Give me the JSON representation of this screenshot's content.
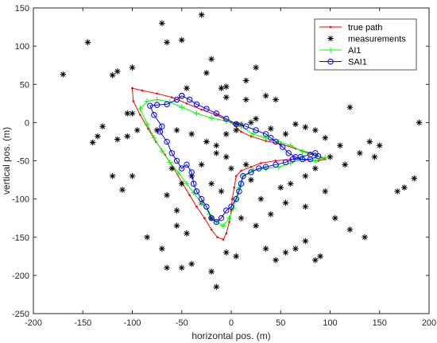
{
  "chart_data": {
    "type": "line",
    "xlabel": "horizontal pos. (m)",
    "ylabel": "vertical pos. (m)",
    "xlim": [
      -200,
      200
    ],
    "ylim": [
      -250,
      150
    ],
    "xticks": [
      -200,
      -150,
      -100,
      -50,
      0,
      50,
      100,
      150,
      200
    ],
    "yticks": [
      -250,
      -200,
      -150,
      -100,
      -50,
      0,
      50,
      100,
      150
    ],
    "grid": false,
    "legend_position": "top-right",
    "series": [
      {
        "name": "true path",
        "color": "#ff0000",
        "marker": "dot",
        "points": [
          [
            -100,
            45
          ],
          [
            -90,
            42
          ],
          [
            -75,
            38
          ],
          [
            -60,
            33
          ],
          [
            -45,
            25
          ],
          [
            -30,
            17
          ],
          [
            -15,
            10
          ],
          [
            0,
            0
          ],
          [
            10,
            -12
          ],
          [
            20,
            -18
          ],
          [
            35,
            -24
          ],
          [
            50,
            -28
          ],
          [
            65,
            -34
          ],
          [
            80,
            -40
          ],
          [
            95,
            -48
          ],
          [
            88,
            -50
          ],
          [
            75,
            -49
          ],
          [
            60,
            -48
          ],
          [
            45,
            -50
          ],
          [
            30,
            -53
          ],
          [
            20,
            -58
          ],
          [
            10,
            -63
          ],
          [
            5,
            -70
          ],
          [
            3,
            -85
          ],
          [
            1,
            -100
          ],
          [
            0,
            -115
          ],
          [
            -2,
            -130
          ],
          [
            -5,
            -145
          ],
          [
            -8,
            -153
          ],
          [
            -14,
            -150
          ],
          [
            -20,
            -140
          ],
          [
            -27,
            -125
          ],
          [
            -35,
            -110
          ],
          [
            -42,
            -95
          ],
          [
            -50,
            -78
          ],
          [
            -58,
            -60
          ],
          [
            -67,
            -42
          ],
          [
            -76,
            -25
          ],
          [
            -84,
            -8
          ],
          [
            -92,
            10
          ],
          [
            -99,
            28
          ],
          [
            -100,
            45
          ]
        ]
      },
      {
        "name": "measurements",
        "color": "#000000",
        "marker": "asterisk",
        "points": [
          [
            -30,
            141
          ],
          [
            -70,
            130
          ],
          [
            -145,
            105
          ],
          [
            -50,
            108
          ],
          [
            -65,
            105
          ],
          [
            -170,
            63
          ],
          [
            -115,
            67
          ],
          [
            -120,
            62
          ],
          [
            -100,
            72
          ],
          [
            -20,
            83
          ],
          [
            25,
            72
          ],
          [
            -25,
            65
          ],
          [
            -10,
            45
          ],
          [
            -5,
            47
          ],
          [
            -45,
            45
          ],
          [
            15,
            55
          ],
          [
            15,
            30
          ],
          [
            -5,
            33
          ],
          [
            35,
            35
          ],
          [
            45,
            30
          ],
          [
            -100,
            12
          ],
          [
            -105,
            12
          ],
          [
            -130,
            -5
          ],
          [
            -135,
            -18
          ],
          [
            -140,
            -26
          ],
          [
            -115,
            -22
          ],
          [
            -105,
            -18
          ],
          [
            -95,
            -10
          ],
          [
            -75,
            -10
          ],
          [
            -55,
            -10
          ],
          [
            -40,
            -15
          ],
          [
            -25,
            -25
          ],
          [
            -15,
            -30
          ],
          [
            -5,
            -15
          ],
          [
            5,
            -10
          ],
          [
            10,
            -3
          ],
          [
            20,
            0
          ],
          [
            25,
            5
          ],
          [
            40,
            -8
          ],
          [
            55,
            -15
          ],
          [
            65,
            -2
          ],
          [
            75,
            -6
          ],
          [
            85,
            -10
          ],
          [
            95,
            -20
          ],
          [
            110,
            -30
          ],
          [
            120,
            20
          ],
          [
            140,
            -25
          ],
          [
            150,
            -30
          ],
          [
            145,
            -45
          ],
          [
            130,
            -40
          ],
          [
            115,
            -55
          ],
          [
            100,
            -45
          ],
          [
            85,
            -60
          ],
          [
            75,
            -70
          ],
          [
            60,
            -80
          ],
          [
            50,
            -85
          ],
          [
            95,
            -90
          ],
          [
            105,
            -125
          ],
          [
            120,
            -140
          ],
          [
            135,
            -150
          ],
          [
            75,
            -155
          ],
          [
            65,
            -165
          ],
          [
            55,
            -170
          ],
          [
            45,
            -180
          ],
          [
            35,
            -165
          ],
          [
            85,
            -180
          ],
          [
            90,
            -175
          ],
          [
            -5,
            -170
          ],
          [
            5,
            -175
          ],
          [
            -20,
            -195
          ],
          [
            -15,
            -215
          ],
          [
            -50,
            -190
          ],
          [
            -40,
            -185
          ],
          [
            -65,
            -190
          ],
          [
            -70,
            -165
          ],
          [
            -85,
            -150
          ],
          [
            -55,
            -135
          ],
          [
            -45,
            -145
          ],
          [
            -20,
            -125
          ],
          [
            -10,
            -90
          ],
          [
            -20,
            -80
          ],
          [
            -40,
            -70
          ],
          [
            -50,
            -80
          ],
          [
            -65,
            -95
          ],
          [
            -55,
            -115
          ],
          [
            -30,
            -105
          ],
          [
            10,
            -125
          ],
          [
            25,
            -135
          ],
          [
            40,
            -120
          ],
          [
            55,
            -105
          ],
          [
            75,
            -110
          ],
          [
            30,
            -100
          ],
          [
            20,
            -75
          ],
          [
            15,
            -55
          ],
          [
            0,
            -60
          ],
          [
            -5,
            -45
          ],
          [
            -15,
            -40
          ],
          [
            -30,
            -55
          ],
          [
            -100,
            -70
          ],
          [
            -110,
            -88
          ],
          [
            -120,
            -70
          ],
          [
            185,
            -73
          ],
          [
            175,
            -85
          ],
          [
            168,
            -90
          ],
          [
            190,
            0
          ],
          [
            5,
            -2
          ],
          [
            -60,
            -60
          ]
        ]
      },
      {
        "name": "AI1",
        "color": "#00ff00",
        "marker": "plus",
        "points": [
          [
            -92,
            18
          ],
          [
            -85,
            28
          ],
          [
            -75,
            30
          ],
          [
            -62,
            27
          ],
          [
            -50,
            20
          ],
          [
            -35,
            12
          ],
          [
            -20,
            6
          ],
          [
            -5,
            2
          ],
          [
            10,
            -5
          ],
          [
            22,
            -15
          ],
          [
            35,
            -20
          ],
          [
            48,
            -25
          ],
          [
            60,
            -30
          ],
          [
            72,
            -38
          ],
          [
            85,
            -43
          ],
          [
            95,
            -46
          ],
          [
            85,
            -50
          ],
          [
            72,
            -48
          ],
          [
            60,
            -53
          ],
          [
            48,
            -58
          ],
          [
            35,
            -60
          ],
          [
            22,
            -62
          ],
          [
            12,
            -70
          ],
          [
            8,
            -85
          ],
          [
            5,
            -100
          ],
          [
            2,
            -112
          ],
          [
            -2,
            -125
          ],
          [
            -8,
            -135
          ],
          [
            -15,
            -130
          ],
          [
            -22,
            -120
          ],
          [
            -30,
            -105
          ],
          [
            -38,
            -92
          ],
          [
            -45,
            -80
          ],
          [
            -53,
            -66
          ],
          [
            -62,
            -52
          ],
          [
            -70,
            -37
          ],
          [
            -78,
            -20
          ],
          [
            -85,
            -2
          ],
          [
            -92,
            18
          ]
        ]
      },
      {
        "name": "SAI1",
        "color": "#0000ff",
        "marker": "circle",
        "points": [
          [
            -50,
            35
          ],
          [
            -55,
            30
          ],
          [
            -65,
            24
          ],
          [
            -75,
            23
          ],
          [
            -82,
            22
          ],
          [
            -78,
            10
          ],
          [
            -70,
            -5
          ],
          [
            -72,
            -12
          ],
          [
            -65,
            -25
          ],
          [
            -60,
            -40
          ],
          [
            -55,
            -50
          ],
          [
            -50,
            -60
          ],
          [
            -45,
            -55
          ],
          [
            -40,
            -65
          ],
          [
            -38,
            -80
          ],
          [
            -35,
            -90
          ],
          [
            -30,
            -100
          ],
          [
            -25,
            -110
          ],
          [
            -20,
            -125
          ],
          [
            -15,
            -130
          ],
          [
            -10,
            -125
          ],
          [
            -5,
            -115
          ],
          [
            0,
            -110
          ],
          [
            5,
            -100
          ],
          [
            8,
            -90
          ],
          [
            10,
            -80
          ],
          [
            12,
            -70
          ],
          [
            20,
            -65
          ],
          [
            28,
            -60
          ],
          [
            35,
            -58
          ],
          [
            45,
            -55
          ],
          [
            55,
            -52
          ],
          [
            62,
            -48
          ],
          [
            70,
            -45
          ],
          [
            80,
            -42
          ],
          [
            85,
            -40
          ],
          [
            88,
            -44
          ],
          [
            80,
            -48
          ],
          [
            72,
            -48
          ],
          [
            65,
            -45
          ],
          [
            58,
            -40
          ],
          [
            52,
            -32
          ],
          [
            45,
            -25
          ],
          [
            40,
            -20
          ],
          [
            35,
            -15
          ],
          [
            25,
            -10
          ],
          [
            15,
            -5
          ],
          [
            5,
            -2
          ],
          [
            -5,
            5
          ],
          [
            -15,
            12
          ],
          [
            -25,
            18
          ],
          [
            -35,
            24
          ],
          [
            -42,
            30
          ],
          [
            -50,
            35
          ]
        ]
      }
    ]
  }
}
